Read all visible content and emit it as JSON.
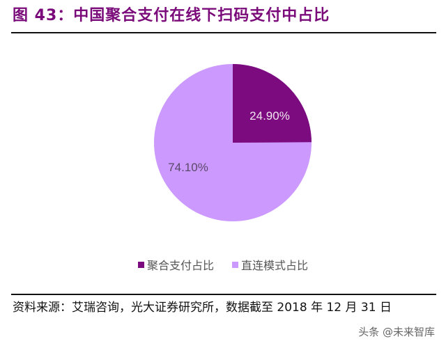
{
  "header": {
    "title": "图 43：中国聚合支付在线下扫码支付中占比"
  },
  "chart_data": {
    "type": "pie",
    "title": "中国聚合支付在线下扫码支付中占比",
    "categories": [
      "聚合支付占比",
      "直连模式占比"
    ],
    "values": [
      24.9,
      74.1
    ],
    "labels": [
      "24.90%",
      "74.10%"
    ],
    "colors": [
      "#7b0b7e",
      "#cc99ff"
    ],
    "start_angle": "12 o'clock, clockwise",
    "legend_position": "bottom"
  },
  "legend": {
    "items": [
      {
        "label": "聚合支付占比",
        "color": "#7b0b7e"
      },
      {
        "label": "直连模式占比",
        "color": "#cc99ff"
      }
    ]
  },
  "footer": {
    "source": "资料来源：艾瑞咨询，光大证券研究所，数据截至 2018 年 12 月 31 日",
    "watermark": "头条 @未来智库"
  }
}
